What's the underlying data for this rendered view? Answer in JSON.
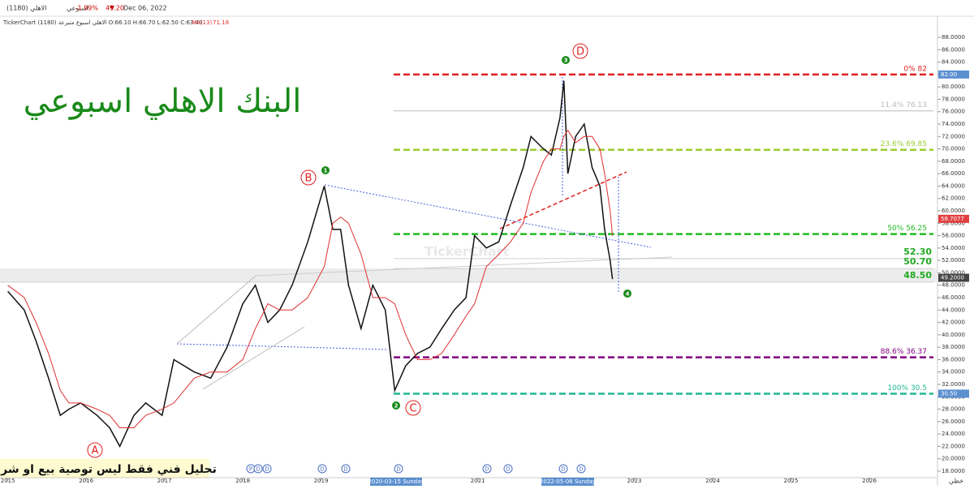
{
  "chart_data": {
    "type": "line",
    "header": {
      "symbol": "الاهلي (1180)",
      "period": "اسبوعي",
      "price": "49.20",
      "change": "-1.99%",
      "date": "Dec 06, 2022",
      "ohlc": "TickerChart الاهلي اسبوع متبرعة (1180) O:66.10 H:66.70 L:62.50 C:63.40"
    },
    "title": "البنك الاهلي اسبوعي",
    "note": "تحليل فني فقط ليس توصية بيع او شراء",
    "watermark": "TickerChart",
    "axis_mode": "خطي",
    "x": [
      2015.0,
      2015.21,
      2015.36,
      2015.52,
      2015.67,
      2015.78,
      2015.93,
      2016.14,
      2016.3,
      2016.43,
      2016.61,
      2016.76,
      2016.97,
      2017.12,
      2017.38,
      2017.59,
      2017.8,
      2018.0,
      2018.16,
      2018.32,
      2018.47,
      2018.63,
      2018.83,
      2019.04,
      2019.15,
      2019.25,
      2019.35,
      2019.51,
      2019.66,
      2019.82,
      2019.94,
      2020.08,
      2020.23,
      2020.39,
      2020.54,
      2020.7,
      2020.85,
      2020.96,
      2021.11,
      2021.27,
      2021.42,
      2021.58,
      2021.68,
      2021.84,
      2021.94,
      2022.05,
      2022.1,
      2022.15,
      2022.25,
      2022.36,
      2022.46,
      2022.56,
      2022.62,
      2022.69,
      2022.72
    ],
    "values": [
      47,
      44,
      39,
      33,
      27,
      28,
      29,
      27,
      25,
      22,
      27,
      29,
      27,
      36,
      34,
      33,
      38,
      45,
      48,
      42,
      44,
      48,
      55,
      64,
      57,
      57,
      48,
      41,
      48,
      44,
      31,
      35,
      37,
      38,
      41,
      44,
      46,
      56,
      54,
      55,
      61,
      67,
      72,
      70,
      69,
      75,
      81,
      66,
      72,
      74,
      67,
      64,
      57,
      52,
      49
    ],
    "color": "#111111",
    "ma": {
      "name": "MA(13)",
      "last": 71.18,
      "color": "#e03030",
      "values": [
        48,
        46,
        42,
        37,
        31,
        29,
        29,
        28,
        27,
        25,
        25,
        27,
        28,
        29,
        33,
        34,
        34,
        36,
        41,
        45,
        44,
        44,
        46,
        51,
        58,
        59,
        58,
        53,
        46,
        46,
        45,
        40,
        36,
        36,
        37,
        40,
        43,
        45,
        51,
        53,
        55,
        58,
        63,
        68,
        70,
        70,
        72,
        73,
        71,
        72,
        72,
        70,
        66,
        60,
        56
      ]
    },
    "xlim": [
      2014.9,
      2026.87
    ],
    "xticks": [
      2015,
      2016,
      2017,
      2018,
      2019,
      2021,
      2023,
      2024,
      2025,
      2026
    ],
    "ylim": [
      16.95,
      94.02
    ],
    "yticks": [
      {
        "value": 18,
        "label": "18.0000"
      },
      {
        "value": 20,
        "label": "20.0000"
      },
      {
        "value": 22,
        "label": "22.0000"
      },
      {
        "value": 24,
        "label": "24.0000"
      },
      {
        "value": 26,
        "label": "26.0000"
      },
      {
        "value": 28,
        "label": "28.0000"
      },
      {
        "value": 30,
        "label": "30.0000"
      },
      {
        "value": 32,
        "label": "32.0000"
      },
      {
        "value": 34,
        "label": "34.0000"
      },
      {
        "value": 36,
        "label": "36.0000"
      },
      {
        "value": 38,
        "label": "38.0000"
      },
      {
        "value": 40,
        "label": "40.0000"
      },
      {
        "value": 42,
        "label": "42.0000"
      },
      {
        "value": 44,
        "label": "44.0000"
      },
      {
        "value": 46,
        "label": "46.0000"
      },
      {
        "value": 48,
        "label": "48.0000"
      },
      {
        "value": 50,
        "label": "50.0000"
      },
      {
        "value": 52,
        "label": "52.0000"
      },
      {
        "value": 54,
        "label": "54.0000"
      },
      {
        "value": 56,
        "label": "56.0000"
      },
      {
        "value": 58,
        "label": "58.0000"
      },
      {
        "value": 60,
        "label": "60.0000"
      },
      {
        "value": 62,
        "label": "62.0000"
      },
      {
        "value": 64,
        "label": "64.0000"
      },
      {
        "value": 66,
        "label": "66.0000"
      },
      {
        "value": 68,
        "label": "68.0000"
      },
      {
        "value": 70,
        "label": "70.0000"
      },
      {
        "value": 72,
        "label": "72.0000"
      },
      {
        "value": 74,
        "label": "74.0000"
      },
      {
        "value": 76,
        "label": "76.0000"
      },
      {
        "value": 78,
        "label": "78.0000"
      },
      {
        "value": 80,
        "label": "80.0000"
      },
      {
        "value": 82,
        "label": "82.0000"
      },
      {
        "value": 84,
        "label": "84.0000"
      },
      {
        "value": 86,
        "label": "86.0000"
      },
      {
        "value": 88,
        "label": "88.0000"
      }
    ],
    "fib_levels": [
      {
        "value": 82,
        "label": "0%   82",
        "color": "#e02020",
        "dashed": true
      },
      {
        "value": 76.13,
        "label": "11.4%   76.13",
        "color": "#bbbbbb",
        "dashed": false
      },
      {
        "value": 69.85,
        "label": "23.6%   69.85",
        "color": "#9acd32",
        "dashed": true
      },
      {
        "value": 56.25,
        "label": "50%   56.25",
        "color": "#22bb22",
        "dashed": true
      },
      {
        "value": 36.37,
        "label": "88.6%   36.37",
        "color": "#800080",
        "dashed": true
      },
      {
        "value": 30.5,
        "label": "100%   30.5",
        "color": "#20b890",
        "dashed": true
      }
    ],
    "support_levels": [
      {
        "value": 52.3,
        "label": "52.30"
      },
      {
        "value": 50.7,
        "label": "50.70"
      },
      {
        "value": 48.5,
        "label": "48.50"
      }
    ],
    "support_color": "#22aa22",
    "price_tags": [
      {
        "value": 82,
        "label": "82.00",
        "color": "#5b8fd0"
      },
      {
        "value": 58.7077,
        "label": "58.7077",
        "color": "#e04040"
      },
      {
        "value": 49.2,
        "label": "49.2000",
        "color": "#444444"
      },
      {
        "value": 30.5,
        "label": "30.50",
        "color": "#5b8fd0"
      }
    ],
    "wave_labels": [
      "A",
      "B",
      "C",
      "D"
    ],
    "wave_counts": [
      "1",
      "2",
      "3",
      "4"
    ],
    "date_tags": [
      "2020-03-15 Sunday",
      "2022-05-08 Sunday"
    ],
    "events": [
      "P",
      "D",
      "D",
      "D",
      "D",
      "D",
      "D",
      "D",
      "D",
      "D"
    ]
  }
}
